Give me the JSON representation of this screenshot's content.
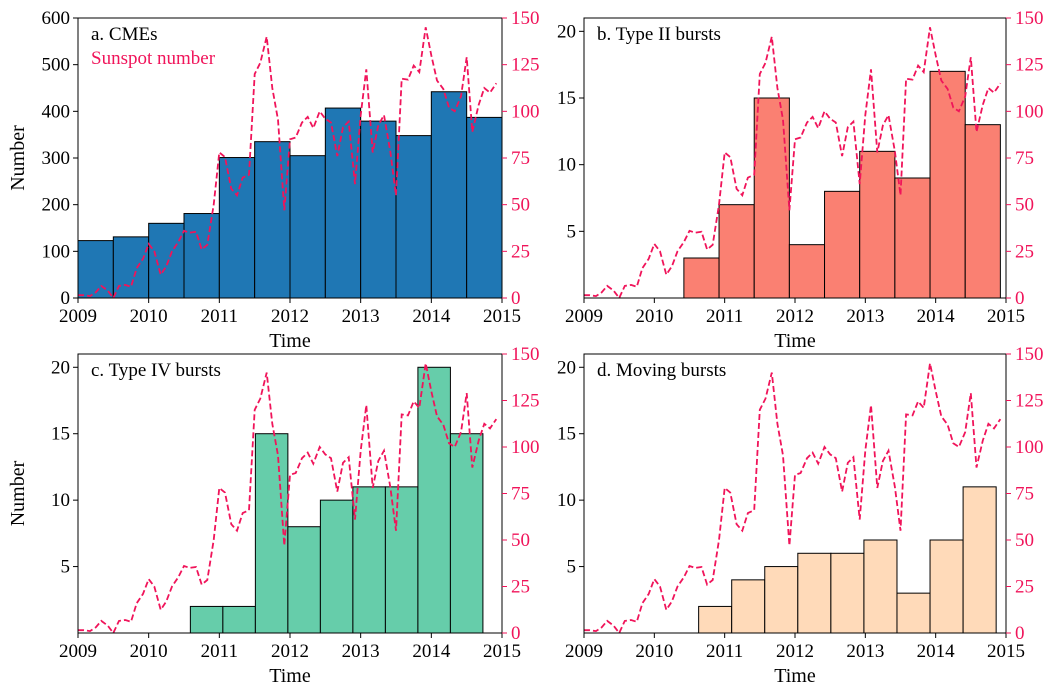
{
  "chart_data": [
    {
      "panel": "a",
      "type": "bar",
      "title": "a. CMEs",
      "legend_label": "Sunspot number",
      "xlabel": "Time",
      "ylabel": "Number",
      "xlim": [
        2009,
        2015
      ],
      "x_ticks": [
        "2009",
        "2010",
        "2011",
        "2012",
        "2013",
        "2014",
        "2015"
      ],
      "ylim": [
        0,
        600
      ],
      "y_ticks": [
        "0",
        "100",
        "200",
        "300",
        "400",
        "500",
        "600"
      ],
      "y2lim": [
        0,
        150
      ],
      "y2_ticks": [
        "0",
        "25",
        "50",
        "75",
        "100",
        "125",
        "150"
      ],
      "color": "#1f77b4",
      "bar_edges": [
        2009.0,
        2009.5,
        2010.0,
        2010.5,
        2011.0,
        2011.5,
        2012.0,
        2012.5,
        2013.0,
        2013.5,
        2014.0,
        2014.5,
        2015.0
      ],
      "values": [
        123,
        131,
        160,
        181,
        301,
        335,
        305,
        407,
        379,
        348,
        442,
        387
      ]
    },
    {
      "panel": "b",
      "type": "bar",
      "title": "b. Type II bursts",
      "xlabel": "Time",
      "ylabel": "",
      "xlim": [
        2009,
        2015
      ],
      "x_ticks": [
        "2009",
        "2010",
        "2011",
        "2012",
        "2013",
        "2014",
        "2015"
      ],
      "ylim": [
        0,
        21
      ],
      "y_ticks": [
        "5",
        "10",
        "15",
        "20"
      ],
      "y2lim": [
        0,
        150
      ],
      "y2_ticks": [
        "0",
        "25",
        "50",
        "75",
        "100",
        "125",
        "150"
      ],
      "color": "#fa8072",
      "bar_edges": [
        2010.42,
        2010.92,
        2011.42,
        2011.92,
        2012.42,
        2012.92,
        2013.42,
        2013.92,
        2014.42,
        2014.92
      ],
      "values": [
        3,
        7,
        15,
        4,
        8,
        11,
        9,
        17,
        13
      ]
    },
    {
      "panel": "c",
      "type": "bar",
      "title": "c. Type IV bursts",
      "xlabel": "Time",
      "ylabel": "Number",
      "xlim": [
        2009,
        2015
      ],
      "x_ticks": [
        "2009",
        "2010",
        "2011",
        "2012",
        "2013",
        "2014",
        "2015"
      ],
      "ylim": [
        0,
        21
      ],
      "y_ticks": [
        "5",
        "10",
        "15",
        "20"
      ],
      "y2lim": [
        0,
        150
      ],
      "y2_ticks": [
        "0",
        "25",
        "50",
        "75",
        "100",
        "125",
        "150"
      ],
      "color": "#66cdaa",
      "bar_edges": [
        2010.59,
        2011.05,
        2011.51,
        2011.97,
        2012.43,
        2012.89,
        2013.35,
        2013.81,
        2014.27,
        2014.73
      ],
      "values": [
        2,
        2,
        15,
        8,
        10,
        11,
        11,
        20,
        15
      ]
    },
    {
      "panel": "d",
      "type": "bar",
      "title": "d. Moving bursts",
      "xlabel": "Time",
      "ylabel": "",
      "xlim": [
        2009,
        2015
      ],
      "x_ticks": [
        "2009",
        "2010",
        "2011",
        "2012",
        "2013",
        "2014",
        "2015"
      ],
      "ylim": [
        0,
        21
      ],
      "y_ticks": [
        "5",
        "10",
        "15",
        "20"
      ],
      "y2lim": [
        0,
        150
      ],
      "y2_ticks": [
        "0",
        "25",
        "50",
        "75",
        "100",
        "125",
        "150"
      ],
      "color": "#ffdab9",
      "bar_edges": [
        2010.63,
        2011.1,
        2011.57,
        2012.04,
        2012.51,
        2012.98,
        2013.45,
        2013.92,
        2014.39,
        2014.86
      ],
      "values": [
        2,
        4,
        5,
        6,
        6,
        7,
        3,
        7,
        11
      ]
    }
  ],
  "sunspot_series": {
    "name": "Sunspot number",
    "color": "#f0145a",
    "style": "dashed",
    "x": [
      2009.0,
      2009.08,
      2009.17,
      2009.25,
      2009.33,
      2009.42,
      2009.5,
      2009.58,
      2009.67,
      2009.75,
      2009.83,
      2009.92,
      2010.0,
      2010.08,
      2010.17,
      2010.25,
      2010.33,
      2010.42,
      2010.5,
      2010.58,
      2010.67,
      2010.75,
      2010.83,
      2010.92,
      2011.0,
      2011.08,
      2011.17,
      2011.25,
      2011.33,
      2011.42,
      2011.5,
      2011.58,
      2011.67,
      2011.75,
      2011.83,
      2011.92,
      2012.0,
      2012.08,
      2012.17,
      2012.25,
      2012.33,
      2012.42,
      2012.5,
      2012.58,
      2012.67,
      2012.75,
      2012.83,
      2012.92,
      2013.0,
      2013.08,
      2013.17,
      2013.25,
      2013.33,
      2013.42,
      2013.5,
      2013.58,
      2013.67,
      2013.75,
      2013.83,
      2013.92,
      2014.0,
      2014.08,
      2014.17,
      2014.25,
      2014.33,
      2014.42,
      2014.5,
      2014.58,
      2014.67,
      2014.75,
      2014.83,
      2014.92
    ],
    "values": [
      1.5,
      1.5,
      1.0,
      3.0,
      6.5,
      4.0,
      0.0,
      6.5,
      7.0,
      6.0,
      16.0,
      21.0,
      29.0,
      25.0,
      12.5,
      17.0,
      25.0,
      30.0,
      36.0,
      35.0,
      35.5,
      26.0,
      28.5,
      50.0,
      78.0,
      75.5,
      58.5,
      55.0,
      64.5,
      66.0,
      120.0,
      126.0,
      140.0,
      112.5,
      95.5,
      47.0,
      85.0,
      86.0,
      94.0,
      97.0,
      91.0,
      100.0,
      96.0,
      94.0,
      76.0,
      91.5,
      94.5,
      61.0,
      98.0,
      122.5,
      78.0,
      92.5,
      98.0,
      78.5,
      55.0,
      117.5,
      117.0,
      124.5,
      121.0,
      145.0,
      130.0,
      116.5,
      112.0,
      102.0,
      100.0,
      108.0,
      129.0,
      89.0,
      103.5,
      112.5,
      110.0,
      115.0
    ]
  }
}
